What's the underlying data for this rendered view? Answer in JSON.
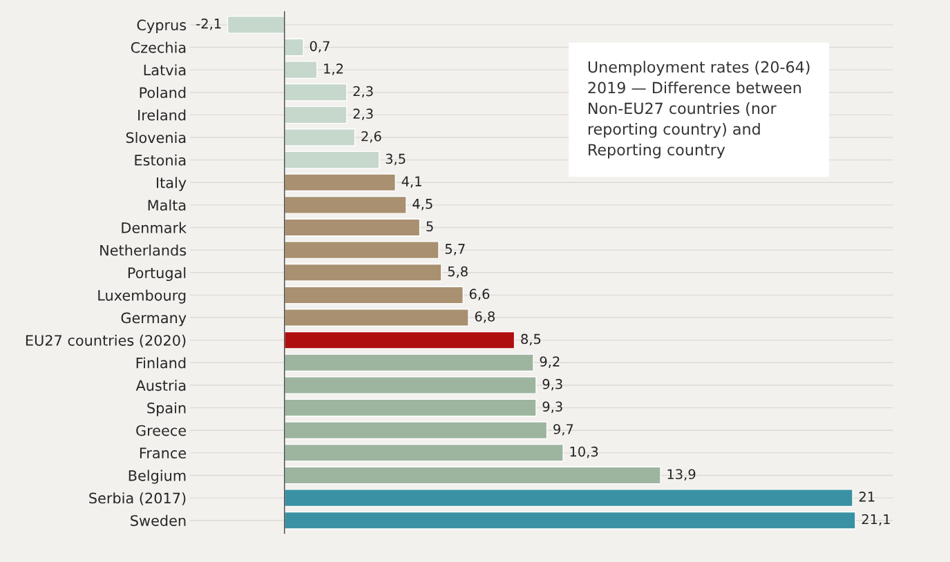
{
  "chart_data": {
    "type": "bar",
    "orientation": "horizontal",
    "title": "Unemployment rates (20-64)\n2019 — Difference between\nNon-EU27 countries (nor\nreporting country) and\nReporting country",
    "categories": [
      "Cyprus",
      "Czechia",
      "Latvia",
      "Poland",
      "Ireland",
      "Slovenia",
      "Estonia",
      "Italy",
      "Malta",
      "Denmark",
      "Netherlands",
      "Portugal",
      "Luxembourg",
      "Germany",
      "EU27 countries (2020)",
      "Finland",
      "Austria",
      "Spain",
      "Greece",
      "France",
      "Belgium",
      "Serbia (2017)",
      "Sweden"
    ],
    "values": [
      -2.1,
      0.7,
      1.2,
      2.3,
      2.3,
      2.6,
      3.5,
      4.1,
      4.5,
      5,
      5.7,
      5.8,
      6.6,
      6.8,
      8.5,
      9.2,
      9.3,
      9.3,
      9.7,
      10.3,
      13.9,
      21,
      21.1
    ],
    "value_labels": [
      "-2,1",
      "0,7",
      "1,2",
      "2,3",
      "2,3",
      "2,6",
      "3,5",
      "4,1",
      "4,5",
      "5",
      "5,7",
      "5,8",
      "6,6",
      "6,8",
      "8,5",
      "9,2",
      "9,3",
      "9,3",
      "9,7",
      "10,3",
      "13,9",
      "21",
      "21,1"
    ],
    "colors": [
      "#c6d7cc",
      "#c6d7cc",
      "#c6d7cc",
      "#c6d7cc",
      "#c6d7cc",
      "#c6d7cc",
      "#c6d7cc",
      "#a89070",
      "#a89070",
      "#a89070",
      "#a89070",
      "#a89070",
      "#a89070",
      "#a89070",
      "#b00f10",
      "#9db59f",
      "#9db59f",
      "#9db59f",
      "#9db59f",
      "#9db59f",
      "#9db59f",
      "#3a91a3",
      "#3a91a3"
    ],
    "tick_labels": "y",
    "grid": "y",
    "legend": false
  }
}
